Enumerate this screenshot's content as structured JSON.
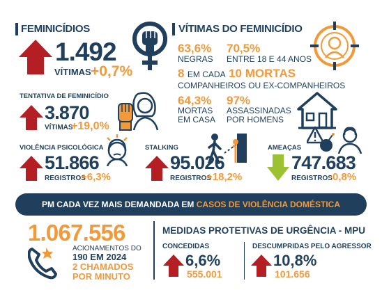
{
  "colors": {
    "navy": "#1f3f5c",
    "orange": "#f29a3a",
    "red": "#b41f24",
    "green": "#9cc232",
    "white": "#ffffff"
  },
  "feminicidios": {
    "title": "FEMINICÍDIOS",
    "value": "1.492",
    "unit": "VÍTIMAS",
    "change": "+0,7%",
    "icon": "female-fist-icon",
    "trend_icon": "arrow-up-icon"
  },
  "vitimas": {
    "title": "VÍTIMAS DO FEMINICÍDIO",
    "icon": "woman-target-icon",
    "negras_pct": "63,6%",
    "negras_label": "NEGRAS",
    "idade_pct": "70,5%",
    "idade_label": "ENTRE 18 E 44 ANOS",
    "companheiros_prefix_num": "8",
    "companheiros_prefix_text": "EM CADA",
    "companheiros_highlight": "10 MORTAS",
    "companheiros_label": "COMPANHEIROS OU EX-COMPANHEIROS",
    "casa_pct": "64,3%",
    "casa_label_1": "MORTAS",
    "casa_label_2": "EM CASA",
    "homens_pct": "97%",
    "homens_label_1": "ASSASSINADAS",
    "homens_label_2": "POR HOMENS",
    "house_icon": "house-icon"
  },
  "tentativa": {
    "title": "TENTATIVA DE FEMINICÍDIO",
    "value": "3.870",
    "unit": "VÍTIMAS",
    "change": "+19,0%",
    "icon": "woman-stop-hand-icon",
    "trend_icon": "arrow-up-icon"
  },
  "psicologica": {
    "title": "VIOLÊNCIA PSICOLÓGICA",
    "value": "51.866",
    "unit": "REGISTROS",
    "change": "+6,3%",
    "icon": "stressed-woman-icon",
    "trend_icon": "arrow-up-icon"
  },
  "stalking": {
    "title": "STALKING",
    "value": "95.026",
    "unit": "REGISTROS",
    "change": "+18,2%",
    "icon": "stalker-icon",
    "trend_icon": "arrow-up-icon"
  },
  "ameacas": {
    "title": "AMEAÇAS",
    "value": "747.683",
    "unit": "REGISTROS",
    "change": "-0,8%",
    "icon": "threat-woman-icon",
    "trend_icon": "arrow-down-icon"
  },
  "banner": {
    "text_white": "PM CADA VEZ MAIS DEMANDADA EM",
    "text_orange": "CASOS DE VIOLÊNCIA DOMÉSTICA"
  },
  "pm": {
    "value": "1.067.556",
    "label_1": "ACIONAMENTOS DO",
    "label_2": "190 EM 2024",
    "rate_1": "2 CHAMADOS",
    "rate_2": "POR MINUTO",
    "icon": "phone-police-icon"
  },
  "mpu": {
    "title": "MEDIDAS PROTETIVAS DE URGÊNCIA - MPU",
    "concedidas_title": "CONCEDIDAS",
    "concedidas_pct": "6,6%",
    "concedidas_value": "555.001",
    "descumpridas_title": "DESCUMPRIDAS PELO AGRESSOR",
    "descumpridas_pct": "10,8%",
    "descumpridas_value": "101.656",
    "trend_icon": "arrow-up-icon"
  }
}
